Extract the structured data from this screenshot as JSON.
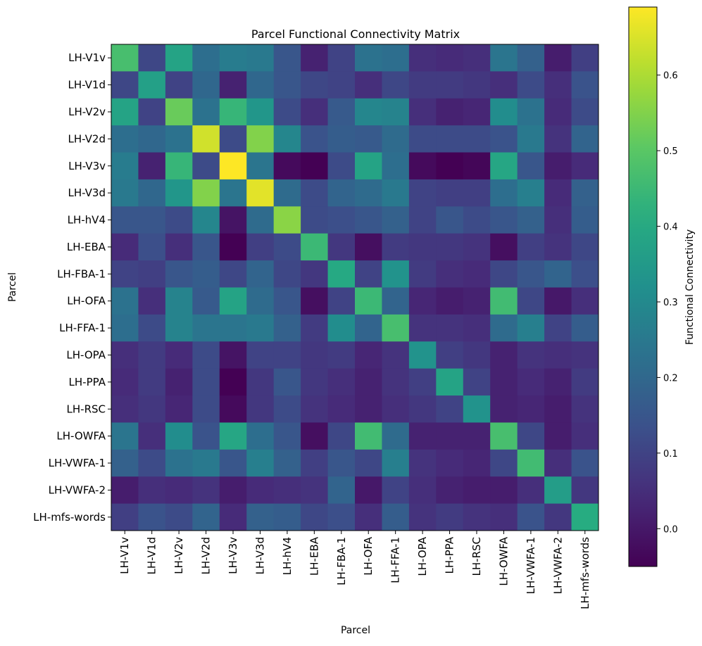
{
  "chart_data": {
    "type": "heatmap",
    "title": "Parcel Functional Connectivity Matrix",
    "xlabel": "Parcel",
    "ylabel": "Parcel",
    "colorbar_label": "Functional Connectivity",
    "colormap": "viridis",
    "vmin": -0.05,
    "vmax": 0.69,
    "colorbar_ticks": [
      "0.0",
      "0.1",
      "0.2",
      "0.3",
      "0.4",
      "0.5",
      "0.6"
    ],
    "colorbar_tick_values": [
      0.0,
      0.1,
      0.2,
      0.3,
      0.4,
      0.5,
      0.6
    ],
    "labels": [
      "LH-V1v",
      "LH-V1d",
      "LH-V2v",
      "LH-V2d",
      "LH-V3v",
      "LH-V3d",
      "LH-hV4",
      "LH-EBA",
      "LH-FBA-1",
      "LH-OFA",
      "LH-FFA-1",
      "LH-OPA",
      "LH-PPA",
      "LH-RSC",
      "LH-OWFA",
      "LH-VWFA-1",
      "LH-VWFA-2",
      "LH-mfs-words"
    ],
    "matrix": [
      [
        0.47,
        0.11,
        0.38,
        0.22,
        0.26,
        0.25,
        0.15,
        0.02,
        0.1,
        0.23,
        0.22,
        0.05,
        0.04,
        0.05,
        0.24,
        0.18,
        0.01,
        0.09
      ],
      [
        0.11,
        0.37,
        0.1,
        0.2,
        0.02,
        0.2,
        0.15,
        0.11,
        0.1,
        0.05,
        0.11,
        0.08,
        0.08,
        0.07,
        0.05,
        0.12,
        0.05,
        0.14
      ],
      [
        0.38,
        0.1,
        0.52,
        0.23,
        0.44,
        0.34,
        0.12,
        0.05,
        0.16,
        0.29,
        0.28,
        0.05,
        0.02,
        0.03,
        0.31,
        0.23,
        0.04,
        0.12
      ],
      [
        0.22,
        0.2,
        0.23,
        0.64,
        0.12,
        0.55,
        0.29,
        0.14,
        0.17,
        0.16,
        0.21,
        0.12,
        0.12,
        0.12,
        0.14,
        0.25,
        0.06,
        0.19
      ],
      [
        0.26,
        0.02,
        0.44,
        0.12,
        0.69,
        0.24,
        -0.03,
        -0.06,
        0.12,
        0.38,
        0.22,
        -0.03,
        -0.06,
        -0.04,
        0.39,
        0.15,
        0.01,
        0.04
      ],
      [
        0.25,
        0.2,
        0.34,
        0.55,
        0.24,
        0.66,
        0.21,
        0.12,
        0.19,
        0.21,
        0.25,
        0.1,
        0.09,
        0.09,
        0.22,
        0.27,
        0.04,
        0.18
      ],
      [
        0.15,
        0.15,
        0.12,
        0.29,
        -0.01,
        0.21,
        0.56,
        0.12,
        0.13,
        0.15,
        0.18,
        0.1,
        0.15,
        0.12,
        0.15,
        0.18,
        0.05,
        0.17
      ],
      [
        0.04,
        0.13,
        0.05,
        0.15,
        -0.05,
        0.09,
        0.12,
        0.45,
        0.07,
        -0.02,
        0.08,
        0.07,
        0.07,
        0.06,
        -0.02,
        0.09,
        0.06,
        0.11
      ],
      [
        0.1,
        0.09,
        0.15,
        0.17,
        0.11,
        0.19,
        0.11,
        0.07,
        0.4,
        0.1,
        0.33,
        0.08,
        0.05,
        0.04,
        0.11,
        0.15,
        0.19,
        0.13
      ],
      [
        0.23,
        0.05,
        0.28,
        0.16,
        0.38,
        0.21,
        0.15,
        -0.02,
        0.1,
        0.45,
        0.19,
        0.03,
        0.01,
        0.02,
        0.46,
        0.11,
        0.0,
        0.05
      ],
      [
        0.22,
        0.12,
        0.28,
        0.24,
        0.24,
        0.25,
        0.18,
        0.08,
        0.31,
        0.19,
        0.47,
        0.06,
        0.06,
        0.05,
        0.21,
        0.27,
        0.1,
        0.17
      ],
      [
        0.05,
        0.08,
        0.04,
        0.12,
        -0.01,
        0.1,
        0.1,
        0.07,
        0.08,
        0.03,
        0.06,
        0.33,
        0.09,
        0.07,
        0.02,
        0.06,
        0.05,
        0.06
      ],
      [
        0.04,
        0.08,
        0.02,
        0.12,
        -0.05,
        0.07,
        0.15,
        0.07,
        0.05,
        0.02,
        0.06,
        0.09,
        0.38,
        0.1,
        0.02,
        0.04,
        0.02,
        0.08
      ],
      [
        0.05,
        0.07,
        0.03,
        0.12,
        -0.03,
        0.07,
        0.12,
        0.06,
        0.04,
        0.02,
        0.05,
        0.07,
        0.1,
        0.33,
        0.02,
        0.03,
        0.01,
        0.06
      ],
      [
        0.24,
        0.05,
        0.31,
        0.14,
        0.39,
        0.22,
        0.15,
        -0.02,
        0.11,
        0.46,
        0.21,
        0.02,
        0.02,
        0.02,
        0.47,
        0.11,
        0.01,
        0.05
      ],
      [
        0.18,
        0.12,
        0.23,
        0.25,
        0.15,
        0.27,
        0.18,
        0.09,
        0.15,
        0.11,
        0.27,
        0.06,
        0.04,
        0.03,
        0.11,
        0.46,
        0.05,
        0.14
      ],
      [
        0.01,
        0.05,
        0.04,
        0.06,
        0.01,
        0.04,
        0.05,
        0.06,
        0.19,
        0.0,
        0.1,
        0.05,
        0.02,
        0.01,
        0.01,
        0.05,
        0.36,
        0.07
      ],
      [
        0.09,
        0.14,
        0.12,
        0.19,
        0.04,
        0.18,
        0.17,
        0.11,
        0.13,
        0.05,
        0.17,
        0.06,
        0.08,
        0.06,
        0.05,
        0.14,
        0.07,
        0.41
      ]
    ]
  }
}
